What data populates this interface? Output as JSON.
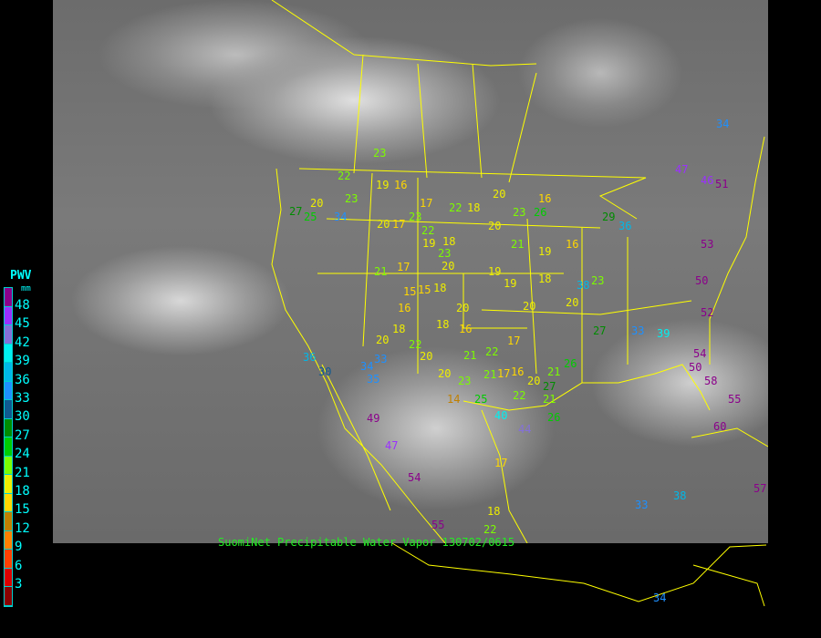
{
  "legend": {
    "title": "PWV",
    "unit": "mm",
    "labels": [
      "48",
      "45",
      "42",
      "39",
      "36",
      "33",
      "30",
      "27",
      "24",
      "21",
      "18",
      "15",
      "12",
      "9",
      "6",
      "3"
    ],
    "colors": [
      "#8b008b",
      "#9b30ff",
      "#8470d8",
      "#00f0f0",
      "#00b8e8",
      "#1e90ff",
      "#105a90",
      "#008c00",
      "#00cc00",
      "#7cfc00",
      "#eeee00",
      "#ffd700",
      "#c08000",
      "#ff8000",
      "#ff4000",
      "#dd0000",
      "#8b0000"
    ]
  },
  "caption": "SuomiNet Precipitable Water Vapor 130702/0615",
  "stations": [
    "23",
    "22",
    "19",
    "16",
    "20",
    "17",
    "22",
    "18",
    "20",
    "23",
    "26",
    "16",
    "23",
    "25",
    "34",
    "27",
    "20",
    "23",
    "17",
    "22",
    "19",
    "18",
    "20",
    "21",
    "19",
    "16",
    "19",
    "18",
    "23",
    "20",
    "17",
    "21",
    "18",
    "15",
    "16",
    "18",
    "20",
    "22",
    "20",
    "18",
    "16",
    "20",
    "15",
    "20",
    "14",
    "21",
    "22",
    "17",
    "23",
    "16",
    "20",
    "21",
    "17",
    "22",
    "27",
    "21",
    "26",
    "33",
    "30",
    "36",
    "34",
    "35",
    "25",
    "49",
    "47",
    "54",
    "55",
    "18",
    "22",
    "40",
    "44",
    "17",
    "19",
    "20",
    "27",
    "29",
    "36",
    "33",
    "39",
    "38",
    "47",
    "46",
    "51",
    "53",
    "50",
    "52",
    "54",
    "50",
    "58",
    "55",
    "60",
    "34",
    "38",
    "57",
    "33",
    "34",
    "26",
    "21",
    "20",
    "23"
  ],
  "map": {
    "background": "grayscale infrared satellite image",
    "boundary_color": "#ffff00"
  }
}
